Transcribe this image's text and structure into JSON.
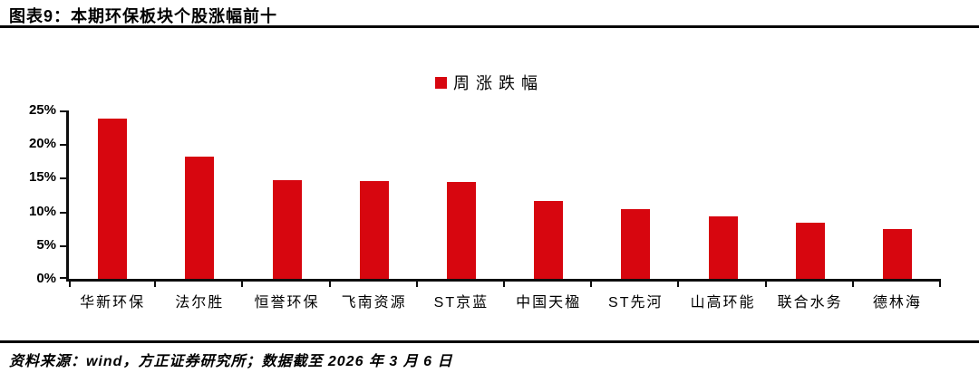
{
  "header": {
    "title": "图表9：本期环保板块个股涨幅前十"
  },
  "footer": {
    "source_text": "资料来源：wind，方正证券研究所；数据截至 2026 年 3 月 6 日"
  },
  "colors": {
    "bar": "#D7060F",
    "axis": "#0d0d0d",
    "text": "#000000",
    "rule": "#000000"
  },
  "chart_data": {
    "type": "bar",
    "title": "图表9：本期环保板块个股涨幅前十",
    "legend": [
      {
        "label": "周涨跌幅",
        "color": "#D7060F"
      }
    ],
    "legend_position": "top-center",
    "categories": [
      "华新环保",
      "法尔胜",
      "恒誉环保",
      "飞南资源",
      "ST京蓝",
      "中国天楹",
      "ST先河",
      "山高环能",
      "联合水务",
      "德林海"
    ],
    "values": [
      23.8,
      18.2,
      14.6,
      14.5,
      14.4,
      11.6,
      10.4,
      9.3,
      8.3,
      7.4
    ],
    "unit": "%",
    "xlabel": "",
    "ylabel": "",
    "ylim": [
      0,
      25
    ],
    "yticks": [
      0,
      5,
      10,
      15,
      20,
      25
    ],
    "yticklabels": [
      "0%",
      "5%",
      "10%",
      "15%",
      "20%",
      "25%"
    ],
    "grid": false
  }
}
